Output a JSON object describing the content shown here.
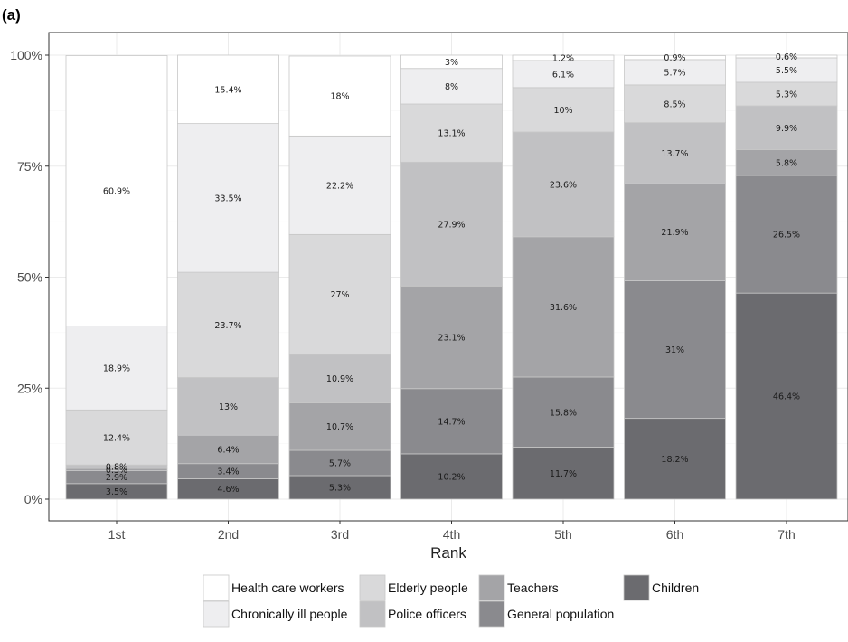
{
  "panel_label": "(a)",
  "chart_data": {
    "type": "bar",
    "stacked": true,
    "percent": true,
    "xlabel": "Rank",
    "ylabel": "",
    "categories": [
      "1st",
      "2nd",
      "3rd",
      "4th",
      "5th",
      "6th",
      "7th"
    ],
    "ylim": [
      0,
      100
    ],
    "yticks": [
      0,
      25,
      50,
      75,
      100
    ],
    "ytick_labels": [
      "0%",
      "25%",
      "50%",
      "75%",
      "100%"
    ],
    "grid": true,
    "legend_position": "bottom",
    "series": [
      {
        "name": "Children",
        "color": "#6b6b6f",
        "values": [
          3.5,
          4.6,
          5.3,
          10.2,
          11.7,
          18.2,
          46.4
        ],
        "labels": [
          "3.5%",
          "4.6%",
          "5.3%",
          "10.2%",
          "11.7%",
          "18.2%",
          "46.4%"
        ]
      },
      {
        "name": "General population",
        "color": "#8a8a8e",
        "values": [
          2.9,
          3.4,
          5.7,
          14.7,
          15.8,
          31,
          26.5
        ],
        "labels": [
          "2.9%",
          "3.4%",
          "5.7%",
          "14.7%",
          "15.8%",
          "31%",
          "26.5%"
        ]
      },
      {
        "name": "Teachers",
        "color": "#a4a4a7",
        "values": [
          0.5,
          6.4,
          10.7,
          23.1,
          31.6,
          21.9,
          5.8
        ],
        "labels": [
          "0.5%",
          "6.4%",
          "10.7%",
          "23.1%",
          "31.6%",
          "21.9%",
          "5.8%"
        ]
      },
      {
        "name": "Police officers",
        "color": "#c1c1c3",
        "values": [
          0.8,
          13,
          10.9,
          27.9,
          23.6,
          13.7,
          9.9
        ],
        "labels": [
          "0.8%",
          "13%",
          "10.9%",
          "27.9%",
          "23.6%",
          "13.7%",
          "9.9%"
        ]
      },
      {
        "name": "Elderly people",
        "color": "#d9d9da",
        "values": [
          12.4,
          23.7,
          27,
          13.1,
          10,
          8.5,
          5.3
        ],
        "labels": [
          "12.4%",
          "23.7%",
          "27%",
          "13.1%",
          "10%",
          "8.5%",
          "5.3%"
        ]
      },
      {
        "name": "Chronically ill people",
        "color": "#eeeef0",
        "values": [
          18.9,
          33.5,
          22.2,
          8,
          6.1,
          5.7,
          5.5
        ],
        "labels": [
          "18.9%",
          "33.5%",
          "22.2%",
          "8%",
          "6.1%",
          "5.7%",
          "5.5%"
        ]
      },
      {
        "name": "Health care workers",
        "color": "#ffffff",
        "values": [
          60.9,
          15.4,
          18,
          3,
          1.2,
          0.9,
          0.6
        ],
        "labels": [
          "60.9%",
          "15.4%",
          "18%",
          "3%",
          "1.2%",
          "0.9%",
          "0.6%"
        ]
      }
    ],
    "legend_order": [
      "Health care workers",
      "Elderly people",
      "Teachers",
      "Children",
      "Chronically ill people",
      "Police officers",
      "General population"
    ]
  }
}
